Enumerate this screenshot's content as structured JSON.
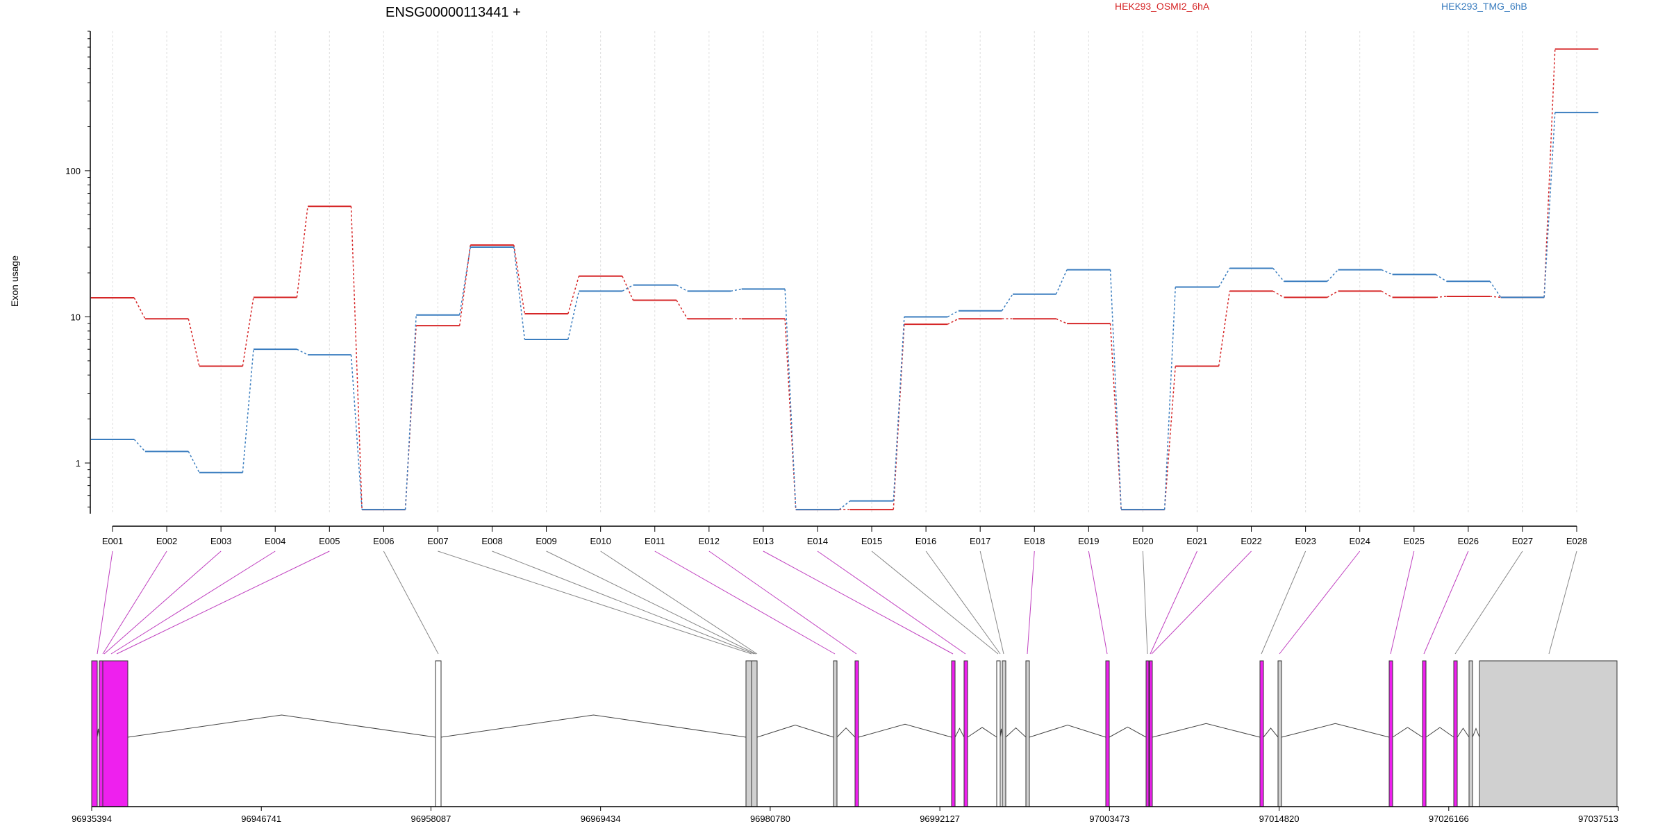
{
  "chart_data": {
    "type": "line",
    "title": "ENSG00000113441 +",
    "ylabel": "Exon usage",
    "xlabel": "",
    "y_scale": "log",
    "ylim": [
      0.45,
      900
    ],
    "y_ticks": [
      1,
      10,
      100
    ],
    "y_tick_labels": [
      "1",
      "10",
      "100"
    ],
    "grid": "vertical dotted lines at exon positions",
    "legend_placement": "top-right",
    "categories": [
      "E001",
      "E002",
      "E003",
      "E004",
      "E005",
      "E006",
      "E007",
      "E008",
      "E009",
      "E010",
      "E011",
      "E012",
      "E013",
      "E014",
      "E015",
      "E016",
      "E017",
      "E018",
      "E019",
      "E020",
      "E021",
      "E022",
      "E023",
      "E024",
      "E025",
      "E026",
      "E027",
      "E028"
    ],
    "series": [
      {
        "name": "HEK293_OSMI2_6hA",
        "color": "#d62728",
        "values": [
          13.5,
          9.7,
          4.6,
          13.6,
          57,
          0.48,
          8.7,
          31,
          10.5,
          19,
          13,
          9.7,
          9.7,
          0.48,
          0.48,
          8.9,
          9.7,
          9.7,
          9.0,
          0.48,
          4.6,
          15,
          13.6,
          15,
          13.6,
          13.8,
          13.6,
          680
        ]
      },
      {
        "name": "HEK293_TMG_6hB",
        "color": "#3a7dbf",
        "values": [
          1.45,
          1.2,
          0.86,
          6.0,
          5.5,
          0.48,
          10.3,
          30,
          7.0,
          15,
          16.5,
          15,
          15.5,
          0.48,
          0.55,
          10,
          11,
          14.3,
          21,
          0.48,
          16,
          21.5,
          17.5,
          21,
          19.5,
          17.5,
          13.6,
          250
        ]
      }
    ],
    "gene_model": {
      "coordinate_labels": [
        "96935394",
        "96946741",
        "96958087",
        "96969434",
        "96980780",
        "96992127",
        "97003473",
        "97014820",
        "97026166",
        "97037513"
      ],
      "coord_start": 96935394,
      "coord_end": 97037513,
      "exon_colors": {
        "significant": "#ee20ee",
        "other": "#d0d0d0",
        "empty": "#ffffff",
        "highlight_line": "#c040c0",
        "normal_line": "#888888"
      }
    }
  }
}
